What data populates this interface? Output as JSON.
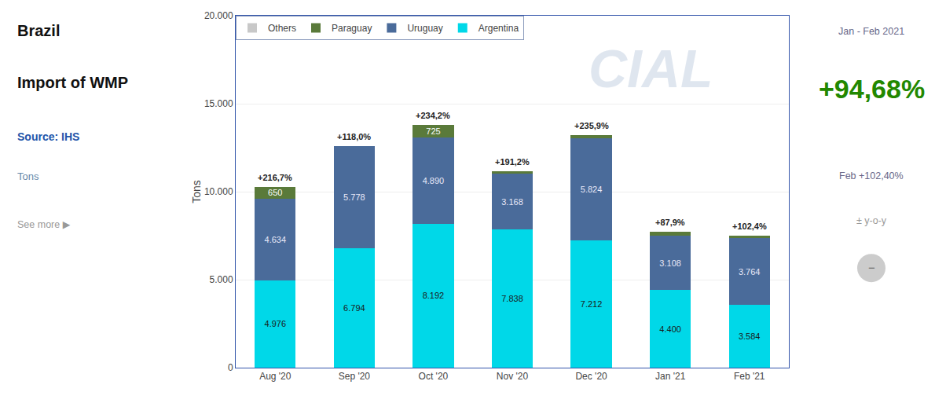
{
  "chart_data": {
    "type": "bar",
    "stacked": true,
    "title": "Brazil",
    "subtitle": "Import of WMP",
    "ylabel": "Tons",
    "categories": [
      "Aug '20",
      "Sep '20",
      "Oct '20",
      "Nov '20",
      "Dec '20",
      "Jan '21",
      "Feb '21"
    ],
    "series": [
      {
        "name": "Argentina",
        "color": "#00d8e8",
        "values": [
          4976,
          6794,
          8192,
          7838,
          7212,
          4400,
          3584
        ],
        "value_labels": [
          "4.976",
          "6.794",
          "8.192",
          "7.838",
          "7.212",
          "4.400",
          "3.584"
        ]
      },
      {
        "name": "Uruguay",
        "color": "#4a6b9a",
        "values": [
          4634,
          5778,
          4890,
          3168,
          5824,
          3108,
          3764
        ],
        "value_labels": [
          "4.634",
          "5.778",
          "4.890",
          "3.168",
          "5.824",
          "3.108",
          "3.764"
        ]
      },
      {
        "name": "Paraguay",
        "color": "#5a7a3a",
        "values": [
          650,
          0,
          725,
          150,
          200,
          200,
          150
        ],
        "value_labels": [
          "650",
          null,
          "725",
          null,
          null,
          null,
          null
        ]
      },
      {
        "name": "Others",
        "color": "#c8c8c8",
        "values": [
          0,
          0,
          0,
          0,
          0,
          0,
          0
        ]
      }
    ],
    "data_labels": true,
    "ylim": [
      0,
      20000
    ],
    "yticks": [
      0,
      {
        "value": 5000,
        "label": "5.000"
      },
      {
        "value": 10000,
        "label": "10.000"
      },
      {
        "value": 15000,
        "label": "15.000"
      },
      {
        "value": 20000,
        "label": "20.000"
      }
    ],
    "grid": true,
    "legend": "upper left",
    "annotations": [
      {
        "x": "Aug '20",
        "text": "+216,7%"
      },
      {
        "x": "Sep '20",
        "text": "+118,0%"
      },
      {
        "x": "Oct '20",
        "text": "+234,2%"
      },
      {
        "x": "Nov '20",
        "text": "+191,2%"
      },
      {
        "x": "Dec '20",
        "text": "+235,9%"
      },
      {
        "x": "Jan '21",
        "text": "+87,9%"
      },
      {
        "x": "Feb '21",
        "text": "+102,4%"
      },
      {
        "text": "Source: IHS"
      },
      {
        "text": "Tons"
      },
      {
        "text": "See more ▶"
      },
      {
        "text": "Jan - Feb 2021"
      },
      {
        "text": "+94,68%"
      },
      {
        "text": "Feb +102,40%"
      },
      {
        "text": "± y-o-y"
      },
      {
        "text": "−"
      },
      {
        "text": "CIAL"
      }
    ]
  }
}
